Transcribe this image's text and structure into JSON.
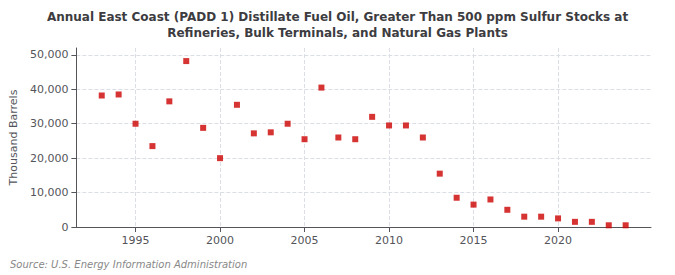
{
  "chart_data": {
    "type": "scatter",
    "title": "Annual East Coast (PADD 1) Distillate Fuel Oil, Greater Than 500 ppm Sulfur Stocks at\nRefineries, Bulk Terminals, and Natural Gas Plants",
    "ylabel": "Thousand Barrels",
    "annotation": "Source: U.S. Energy Information Administration",
    "x": [
      1993,
      1994,
      1995,
      1996,
      1997,
      1998,
      1999,
      2000,
      2001,
      2002,
      2003,
      2004,
      2005,
      2006,
      2007,
      2008,
      2009,
      2010,
      2011,
      2012,
      2013,
      2014,
      2015,
      2016,
      2017,
      2018,
      2019,
      2020,
      2021,
      2022,
      2023,
      2024
    ],
    "values": [
      38200,
      38500,
      30000,
      23500,
      36500,
      48200,
      28800,
      20000,
      35500,
      27200,
      27500,
      30000,
      25500,
      40500,
      26000,
      25500,
      32000,
      29500,
      29500,
      26000,
      15500,
      8500,
      6500,
      8000,
      5000,
      3000,
      3000,
      2500,
      1500,
      1500,
      500,
      500
    ],
    "color": "#cc0000",
    "marker": "square",
    "xlim": [
      1991.5,
      2025.5
    ],
    "xticks": [
      1995,
      2000,
      2005,
      2010,
      2015,
      2020
    ],
    "ylim": [
      0,
      52000
    ],
    "yticks": [
      0,
      {
        "value": 10000,
        "label": "10,000"
      },
      {
        "value": 20000,
        "label": "20,000"
      },
      {
        "value": 30000,
        "label": "30,000"
      },
      {
        "value": 40000,
        "label": "40,000"
      },
      {
        "value": 50000,
        "label": "50,000"
      }
    ],
    "grid": true
  }
}
